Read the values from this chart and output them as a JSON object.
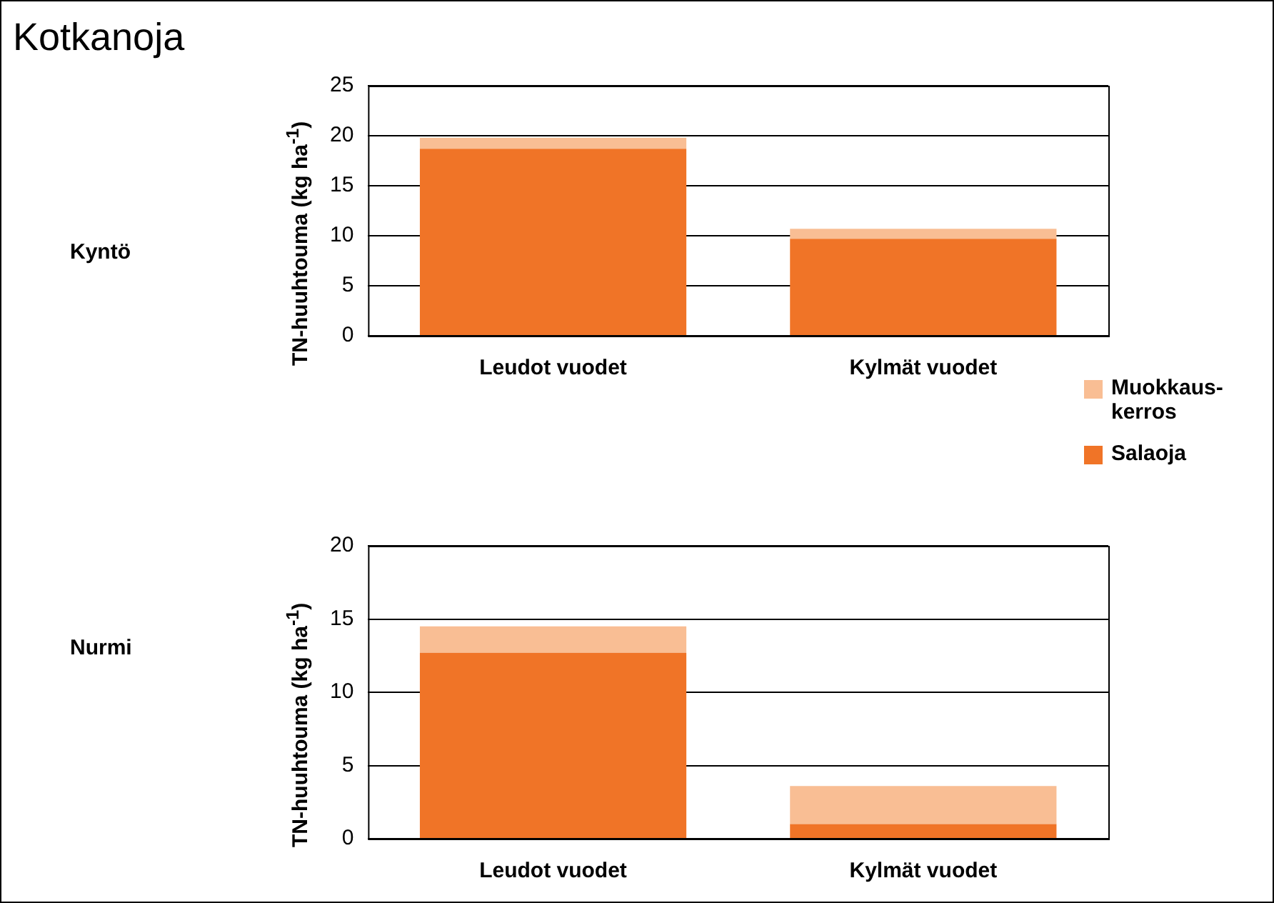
{
  "chart_data": [
    {
      "type": "bar",
      "title": "Kotkanoja",
      "annotations": [
        "Kyntö"
      ],
      "ylabel": "TN-huuhtouma (kg ha$^{-1}$)",
      "categories": [
        "Leudot vuodet",
        "Kylmät vuodet"
      ],
      "stacked": true,
      "series": [
        {
          "name": "Salaoja",
          "color": "#f07427",
          "values": [
            18.7,
            9.7
          ]
        },
        {
          "name": "Muokkaus-kerros",
          "color": "#f9be94",
          "values": [
            1.1,
            1.0
          ]
        }
      ],
      "ylim": [
        0,
        25
      ],
      "yticks": [
        0,
        5,
        10,
        15,
        20,
        25
      ],
      "grid": "y",
      "legend": "right"
    },
    {
      "type": "bar",
      "annotations": [
        "Nurmi"
      ],
      "ylabel": "TN-huuhtouma (kg ha$^{-1}$)",
      "categories": [
        "Leudot vuodet",
        "Kylmät vuodet"
      ],
      "stacked": true,
      "series": [
        {
          "color": "#f07427",
          "values": [
            12.7,
            1.0
          ]
        },
        {
          "color": "#f9be94",
          "values": [
            1.8,
            2.6
          ]
        }
      ],
      "ylim": [
        0,
        20
      ],
      "yticks": [
        0,
        5,
        10,
        15,
        20
      ],
      "grid": "y"
    }
  ]
}
